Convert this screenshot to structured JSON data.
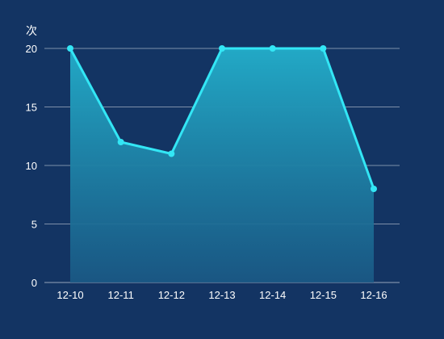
{
  "colors": {
    "background": "#133463",
    "line": "#33e6f5",
    "area_top": "#22a9c6",
    "area_bottom": "#1a5a86"
  },
  "chart_data": {
    "type": "area",
    "title": "",
    "xlabel": "",
    "ylabel": "次",
    "categories": [
      "12-10",
      "12-11",
      "12-12",
      "12-13",
      "12-14",
      "12-15",
      "12-16"
    ],
    "series": [
      {
        "values": [
          20,
          12,
          11,
          20,
          20,
          20,
          8
        ]
      }
    ],
    "ylim": [
      0,
      20
    ],
    "yticks": [
      0,
      5,
      10,
      15,
      20
    ],
    "grid": true,
    "legend": "none"
  }
}
